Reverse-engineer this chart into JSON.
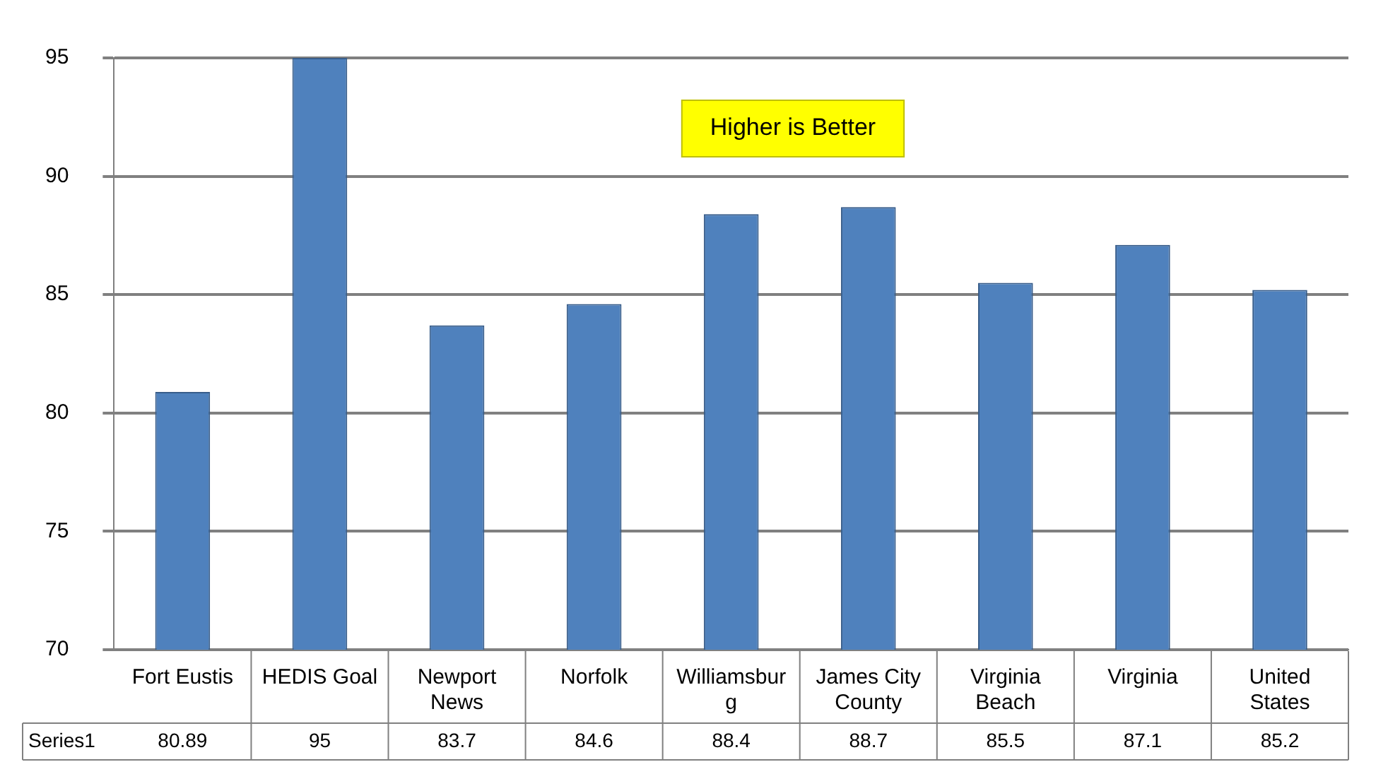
{
  "chart_data": {
    "type": "bar",
    "categories": [
      "Fort Eustis",
      "HEDIS Goal",
      "Newport News",
      "Norfolk",
      "Williamsburg",
      "James City County",
      "Virginia Beach",
      "Virginia",
      "United States"
    ],
    "series": [
      {
        "name": "Series1",
        "color": "#4f81bd",
        "values": [
          80.89,
          95,
          83.7,
          84.6,
          88.4,
          88.7,
          85.5,
          87.1,
          85.2
        ]
      }
    ],
    "ylim": [
      70,
      95
    ],
    "yticks": [
      70,
      75,
      80,
      85,
      90,
      95
    ],
    "grid": "y",
    "legend": false,
    "data_labels": true,
    "annotations": [
      "Higher is Better"
    ]
  }
}
